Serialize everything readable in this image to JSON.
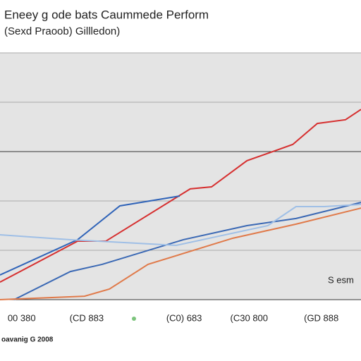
{
  "chart_data": {
    "type": "line",
    "title": "Eneey g ode bats Caummede Perform",
    "subtitle": "(Sexd Praoob) Gillledon)",
    "annotation": "S esm",
    "note": "oavanig G 2008",
    "xlim": [
      0,
      10
    ],
    "ylim": [
      0,
      100
    ],
    "yticks": [
      0,
      20,
      40,
      60,
      80,
      100
    ],
    "xticks": [
      {
        "value": 0.6,
        "label": "00 380"
      },
      {
        "value": 2.4,
        "label": "(CD 883"
      },
      {
        "value": 5.1,
        "label": "(C0) 683"
      },
      {
        "value": 6.9,
        "label": "(C30 800"
      },
      {
        "value": 8.9,
        "label": "(GD 888"
      }
    ],
    "grid": true,
    "series": [
      {
        "color": "#d62f2f",
        "x": [
          0,
          2.15,
          2.93,
          5.27,
          5.86,
          6.84,
          8.11,
          8.79,
          9.57,
          10
        ],
        "values": [
          7.1,
          23.7,
          23.7,
          44.9,
          45.7,
          56.3,
          62.9,
          71.4,
          72.9,
          77.1
        ]
      },
      {
        "color": "#2f63b8",
        "x": [
          0,
          2.15,
          3.32,
          4.98
        ],
        "values": [
          10,
          24.3,
          38,
          42
        ]
      },
      {
        "color": "#3a68b4",
        "x": [
          0.39,
          1.95,
          2.83,
          5.08,
          6.84,
          8.2,
          10
        ],
        "values": [
          0,
          11.4,
          14.3,
          24.3,
          30,
          32.9,
          39.4
        ]
      },
      {
        "color": "#e07a4a",
        "x": [
          0,
          2.34,
          3.03,
          4.1,
          6.45,
          8.2,
          10
        ],
        "values": [
          0,
          1.4,
          4.3,
          14.3,
          24.9,
          30.6,
          37.1
        ]
      },
      {
        "color": "#9fbfe6",
        "x": [
          0,
          1.95,
          4.88,
          7.42,
          8.2,
          8.98,
          10
        ],
        "values": [
          26.3,
          24.3,
          22,
          30,
          37.7,
          37.7,
          38.6
        ]
      }
    ]
  }
}
